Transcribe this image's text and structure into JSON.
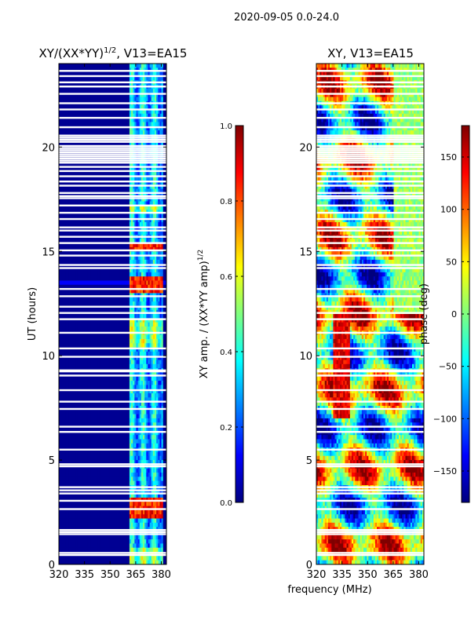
{
  "suptitle": "2020-09-05 0.0-24.0",
  "chart_data": [
    {
      "type": "heatmap",
      "title_main": "XY/(XX*YY)",
      "title_exp": "1/2",
      "title_tail": ", V13=EA15",
      "xlabel": "",
      "ylabel": "UT (hours)",
      "xlim": [
        320,
        383
      ],
      "ylim": [
        0,
        24
      ],
      "xticks": [
        320,
        335,
        350,
        365,
        380
      ],
      "yticks": [
        0,
        5,
        10,
        15,
        20
      ],
      "colorbar": {
        "label_main": "XY amp. / (XX*YY amp)",
        "label_exp": "1/2",
        "range": [
          0.0,
          1.0
        ],
        "ticks": [
          0.0,
          0.2,
          0.4,
          0.6,
          0.8,
          1.0
        ],
        "tick_labels": [
          "0.0",
          "0.2",
          "0.4",
          "0.6",
          "0.8",
          "1.0"
        ]
      }
    },
    {
      "type": "heatmap",
      "title": "XY, V13=EA15",
      "xlabel": "frequency (MHz)",
      "ylabel": "",
      "xlim": [
        320,
        383
      ],
      "ylim": [
        0,
        24
      ],
      "xticks": [
        320,
        335,
        350,
        365,
        380
      ],
      "yticks": [
        0,
        5,
        10,
        15,
        20
      ],
      "colorbar": {
        "label": "phase (deg)",
        "range": [
          -180,
          180
        ],
        "ticks": [
          -150,
          -100,
          -50,
          0,
          50,
          100,
          150
        ],
        "tick_labels": [
          "−150",
          "−100",
          "−50",
          "0",
          "50",
          "100",
          "150"
        ]
      }
    }
  ],
  "colormap": [
    "#00007f",
    "#0000ff",
    "#007fff",
    "#00ffff",
    "#7fff7f",
    "#ffff00",
    "#ff7f00",
    "#ff0000",
    "#7f0000"
  ],
  "flagged_ut_hours": [
    0.45,
    0.55,
    1.45,
    1.55,
    1.65,
    2.65,
    3.05,
    3.4,
    3.55,
    3.7,
    4.7,
    4.8,
    5.5,
    6.35,
    6.6,
    7.45,
    7.8,
    8.35,
    9.05,
    9.25,
    9.3,
    9.95,
    10.35,
    11.1,
    11.75,
    12.05,
    12.35,
    12.85,
    13.2,
    14.2,
    14.35,
    14.8,
    15.05,
    15.4,
    15.7,
    16.0,
    16.15,
    16.55,
    16.85,
    17.2,
    17.55,
    17.65,
    17.8,
    18.15,
    18.35,
    18.6,
    18.85,
    19.05,
    19.25,
    19.35,
    19.45,
    19.55,
    19.65,
    19.75,
    19.85,
    19.95,
    20.05,
    20.25,
    20.35,
    20.45,
    20.55,
    20.95,
    21.4,
    21.8,
    22.1,
    22.55,
    22.9,
    23.1,
    23.4,
    23.65
  ]
}
